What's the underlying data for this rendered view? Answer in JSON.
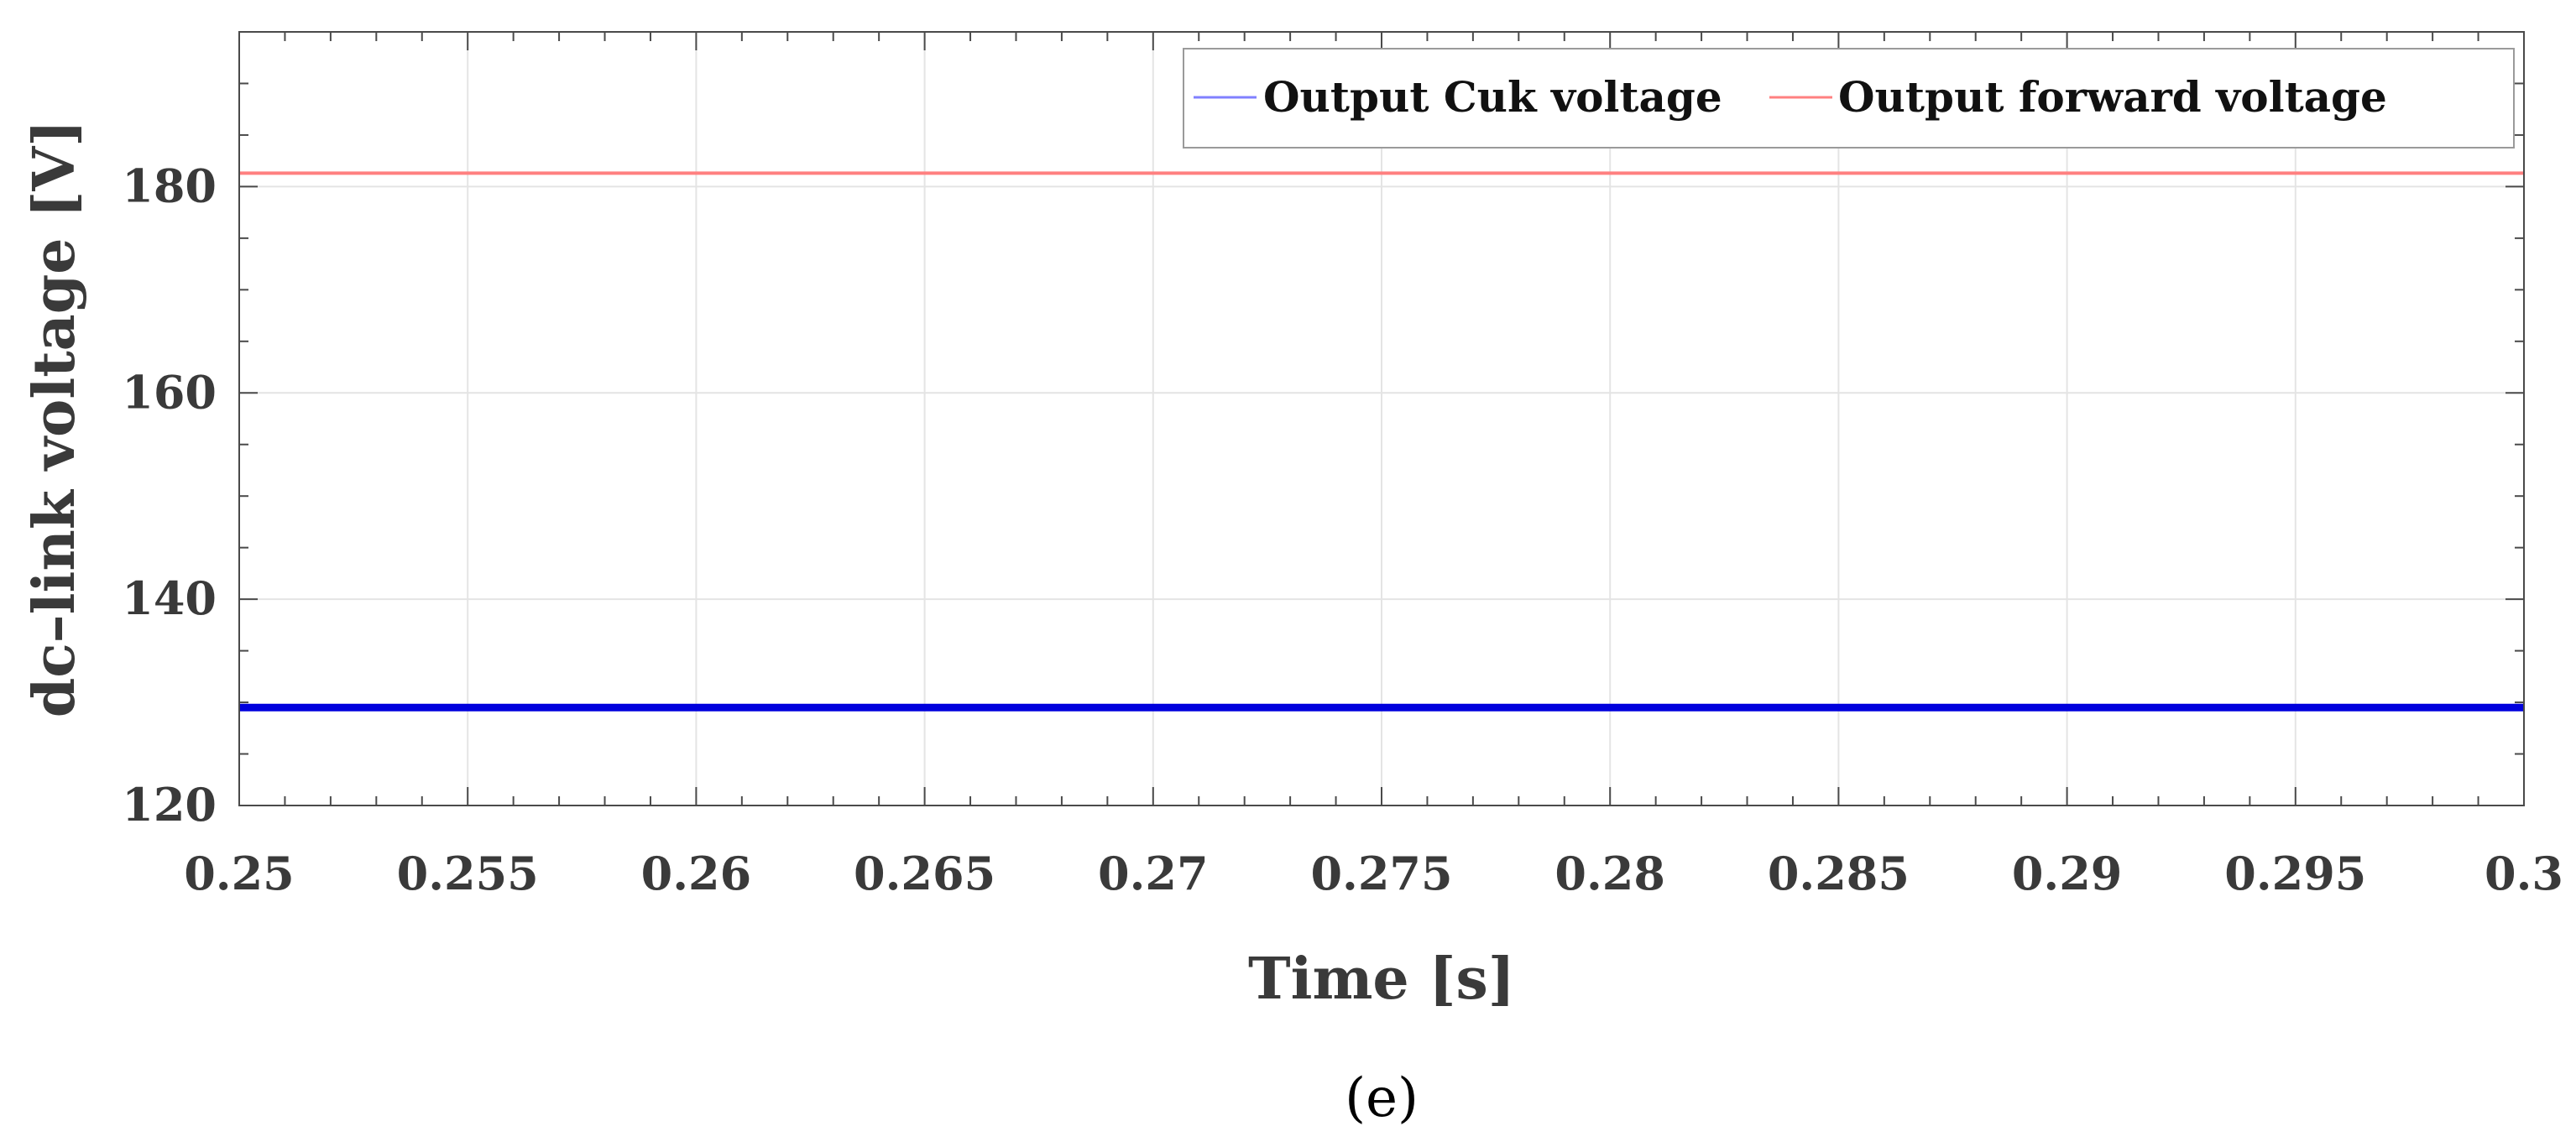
{
  "chart_data": {
    "type": "line",
    "title": "",
    "xlabel": "Time [s]",
    "ylabel": "dc–link voltage [V]",
    "xlim": [
      0.25,
      0.3
    ],
    "ylim": [
      120,
      195
    ],
    "x_ticks": [
      0.25,
      0.255,
      0.26,
      0.265,
      0.27,
      0.275,
      0.28,
      0.285,
      0.29,
      0.295,
      0.3
    ],
    "x_tick_labels": [
      "0.25",
      "0.255",
      "0.26",
      "0.265",
      "0.27",
      "0.275",
      "0.28",
      "0.285",
      "0.29",
      "0.295",
      "0.3"
    ],
    "y_ticks": [
      120,
      140,
      160,
      180
    ],
    "y_tick_labels": [
      "120",
      "140",
      "160",
      "180"
    ],
    "grid": true,
    "legend_position": "top-right",
    "series": [
      {
        "name": "Output Cuk voltage",
        "color": "#0000dd",
        "legend_color": "#8080ff",
        "x": [
          0.25,
          0.3
        ],
        "y": [
          129.5,
          129.5
        ]
      },
      {
        "name": "Output forward voltage",
        "color": "#ff8080",
        "legend_color": "#ff8080",
        "x": [
          0.25,
          0.3
        ],
        "y": [
          181.3,
          181.3
        ]
      }
    ]
  },
  "panel_label": "(e)"
}
